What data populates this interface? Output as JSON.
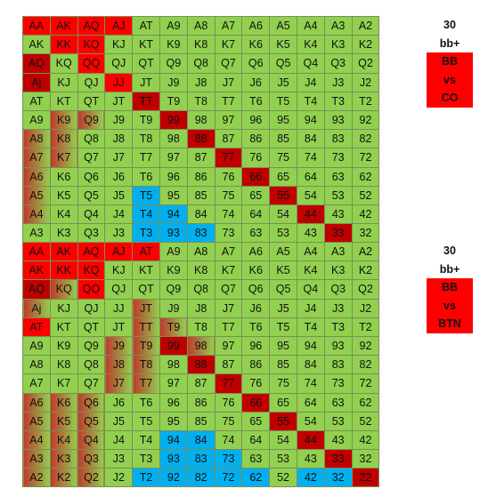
{
  "colors": {
    "green": "#92d050",
    "red": "#ff0000",
    "darkred": "#c00000",
    "blue": "#00b0f0",
    "gradred": "#c0392b"
  },
  "charts": [
    {
      "info": [
        "30",
        "bb+",
        "BB",
        "vs",
        "CO"
      ],
      "info_style": [
        "plain",
        "plain",
        "red",
        "red",
        "red"
      ],
      "rows": [
        [
          "AA",
          "AK",
          "AQ",
          "AJ",
          "AT",
          "A9",
          "A8",
          "A7",
          "A6",
          "A5",
          "A4",
          "A3",
          "A2"
        ],
        [
          "AK",
          "KK",
          "KQ",
          "KJ",
          "KT",
          "K9",
          "K8",
          "K7",
          "K6",
          "K5",
          "K4",
          "K3",
          "K2"
        ],
        [
          "AQ",
          "KQ",
          "QQ",
          "QJ",
          "QT",
          "Q9",
          "Q8",
          "Q7",
          "Q6",
          "Q5",
          "Q4",
          "Q3",
          "Q2"
        ],
        [
          "Aj",
          "KJ",
          "QJ",
          "JJ",
          "JT",
          "J9",
          "J8",
          "J7",
          "J6",
          "J5",
          "J4",
          "J3",
          "J2"
        ],
        [
          "AT",
          "KT",
          "QT",
          "JT",
          "TT",
          "T9",
          "T8",
          "T7",
          "T6",
          "T5",
          "T4",
          "T3",
          "T2"
        ],
        [
          "A9",
          "K9",
          "Q9",
          "J9",
          "T9",
          "99",
          "98",
          "97",
          "96",
          "95",
          "94",
          "93",
          "92"
        ],
        [
          "A8",
          "K8",
          "Q8",
          "J8",
          "T8",
          "98",
          "88",
          "87",
          "86",
          "85",
          "84",
          "83",
          "82"
        ],
        [
          "A7",
          "K7",
          "Q7",
          "J7",
          "T7",
          "97",
          "87",
          "77",
          "76",
          "75",
          "74",
          "73",
          "72"
        ],
        [
          "A6",
          "K6",
          "Q6",
          "J6",
          "T6",
          "96",
          "86",
          "76",
          "66",
          "65",
          "64",
          "63",
          "62"
        ],
        [
          "A5",
          "K5",
          "Q5",
          "J5",
          "T5",
          "95",
          "85",
          "75",
          "65",
          "55",
          "54",
          "53",
          "52"
        ],
        [
          "A4",
          "K4",
          "Q4",
          "J4",
          "T4",
          "94",
          "84",
          "74",
          "64",
          "54",
          "44",
          "43",
          "42"
        ],
        [
          "A3",
          "K3",
          "Q3",
          "J3",
          "T3",
          "93",
          "83",
          "73",
          "63",
          "53",
          "43",
          "33",
          "32"
        ],
        [
          "A2",
          "K2",
          "Q2",
          "J2",
          "T2",
          "92",
          "82",
          "72",
          "62",
          "52",
          "42",
          "32",
          "22"
        ]
      ],
      "colorcodes": [
        [
          "R",
          "R",
          "R",
          "R",
          "G",
          "G",
          "G",
          "G",
          "G",
          "G",
          "G",
          "G",
          "G"
        ],
        [
          "G",
          "R",
          "R",
          "G",
          "G",
          "G",
          "G",
          "G",
          "G",
          "G",
          "G",
          "G",
          "G"
        ],
        [
          "D",
          "G",
          "R",
          "G",
          "G",
          "G",
          "G",
          "G",
          "G",
          "G",
          "G",
          "G",
          "G"
        ],
        [
          "D",
          "G",
          "G",
          "R",
          "G",
          "G",
          "G",
          "G",
          "G",
          "G",
          "G",
          "G",
          "G"
        ],
        [
          "G",
          "G",
          "G",
          "G",
          "D",
          "G",
          "G",
          "G",
          "G",
          "G",
          "G",
          "G",
          "G"
        ],
        [
          "G",
          "M",
          "M",
          "G",
          "G",
          "D",
          "G",
          "G",
          "G",
          "G",
          "G",
          "G",
          "G"
        ],
        [
          "M",
          "M",
          "G",
          "G",
          "G",
          "G",
          "D",
          "G",
          "G",
          "G",
          "G",
          "G",
          "G"
        ],
        [
          "M",
          "M",
          "G",
          "G",
          "G",
          "G",
          "G",
          "D",
          "G",
          "G",
          "G",
          "G",
          "G"
        ],
        [
          "M",
          "G",
          "G",
          "G",
          "G",
          "G",
          "G",
          "G",
          "D",
          "G",
          "G",
          "G",
          "G"
        ],
        [
          "M",
          "G",
          "G",
          "G",
          "B",
          "G",
          "G",
          "G",
          "G",
          "D",
          "G",
          "G",
          "G"
        ],
        [
          "M",
          "G",
          "G",
          "G",
          "B",
          "B",
          "G",
          "G",
          "G",
          "G",
          "D",
          "G",
          "G"
        ],
        [
          "G",
          "G",
          "G",
          "G",
          "B",
          "B",
          "B",
          "G",
          "G",
          "G",
          "G",
          "D",
          "G"
        ],
        [
          "G",
          "G",
          "G",
          "B",
          "B",
          "B",
          "B",
          "B",
          "B",
          "G",
          "B",
          "B",
          "D"
        ]
      ]
    },
    {
      "info": [
        "30",
        "bb+",
        "BB",
        "vs",
        "BTN"
      ],
      "info_style": [
        "plain",
        "plain",
        "red",
        "red",
        "red"
      ],
      "rows": [
        [
          "AA",
          "AK",
          "AQ",
          "AJ",
          "AT",
          "A9",
          "A8",
          "A7",
          "A6",
          "A5",
          "A4",
          "A3",
          "A2"
        ],
        [
          "AK",
          "KK",
          "KQ",
          "KJ",
          "KT",
          "K9",
          "K8",
          "K7",
          "K6",
          "K5",
          "K4",
          "K3",
          "K2"
        ],
        [
          "AQ",
          "KQ",
          "QQ",
          "QJ",
          "QT",
          "Q9",
          "Q8",
          "Q7",
          "Q6",
          "Q5",
          "Q4",
          "Q3",
          "Q2"
        ],
        [
          "Aj",
          "KJ",
          "QJ",
          "JJ",
          "JT",
          "J9",
          "J8",
          "J7",
          "J6",
          "J5",
          "J4",
          "J3",
          "J2"
        ],
        [
          "AT",
          "KT",
          "QT",
          "JT",
          "TT",
          "T9",
          "T8",
          "T7",
          "T6",
          "T5",
          "T4",
          "T3",
          "T2"
        ],
        [
          "A9",
          "K9",
          "Q9",
          "J9",
          "T9",
          "99",
          "98",
          "97",
          "96",
          "95",
          "94",
          "93",
          "92"
        ],
        [
          "A8",
          "K8",
          "Q8",
          "J8",
          "T8",
          "98",
          "88",
          "87",
          "86",
          "85",
          "84",
          "83",
          "82"
        ],
        [
          "A7",
          "K7",
          "Q7",
          "J7",
          "T7",
          "97",
          "87",
          "77",
          "76",
          "75",
          "74",
          "73",
          "72"
        ],
        [
          "A6",
          "K6",
          "Q6",
          "J6",
          "T6",
          "96",
          "86",
          "76",
          "66",
          "65",
          "64",
          "63",
          "62"
        ],
        [
          "A5",
          "K5",
          "Q5",
          "J5",
          "T5",
          "95",
          "85",
          "75",
          "65",
          "55",
          "54",
          "53",
          "52"
        ],
        [
          "A4",
          "K4",
          "Q4",
          "J4",
          "T4",
          "94",
          "84",
          "74",
          "64",
          "54",
          "44",
          "43",
          "42"
        ],
        [
          "A3",
          "K3",
          "Q3",
          "J3",
          "T3",
          "93",
          "83",
          "73",
          "63",
          "53",
          "43",
          "33",
          "32"
        ],
        [
          "A2",
          "K2",
          "Q2",
          "J2",
          "T2",
          "92",
          "82",
          "72",
          "62",
          "52",
          "42",
          "32",
          "22"
        ]
      ],
      "colorcodes": [
        [
          "R",
          "R",
          "R",
          "R",
          "R",
          "G",
          "G",
          "G",
          "G",
          "G",
          "G",
          "G",
          "G"
        ],
        [
          "R",
          "R",
          "R",
          "G",
          "G",
          "G",
          "G",
          "G",
          "G",
          "G",
          "G",
          "G",
          "G"
        ],
        [
          "D",
          "M",
          "R",
          "G",
          "G",
          "G",
          "G",
          "G",
          "G",
          "G",
          "G",
          "G",
          "G"
        ],
        [
          "M",
          "G",
          "G",
          "G",
          "M",
          "G",
          "G",
          "G",
          "G",
          "G",
          "G",
          "G",
          "G"
        ],
        [
          "R",
          "G",
          "G",
          "G",
          "M",
          "M",
          "G",
          "G",
          "G",
          "G",
          "G",
          "G",
          "G"
        ],
        [
          "G",
          "G",
          "G",
          "M",
          "M",
          "D",
          "M",
          "G",
          "G",
          "G",
          "G",
          "G",
          "G"
        ],
        [
          "G",
          "G",
          "G",
          "M",
          "M",
          "G",
          "D",
          "G",
          "G",
          "G",
          "G",
          "G",
          "G"
        ],
        [
          "G",
          "G",
          "G",
          "M",
          "M",
          "G",
          "G",
          "D",
          "G",
          "G",
          "G",
          "G",
          "G"
        ],
        [
          "M",
          "M",
          "M",
          "G",
          "G",
          "G",
          "G",
          "G",
          "D",
          "G",
          "G",
          "G",
          "G"
        ],
        [
          "M",
          "M",
          "M",
          "G",
          "G",
          "G",
          "G",
          "G",
          "G",
          "D",
          "G",
          "G",
          "G"
        ],
        [
          "M",
          "M",
          "M",
          "G",
          "G",
          "B",
          "B",
          "G",
          "G",
          "G",
          "D",
          "G",
          "G"
        ],
        [
          "M",
          "M",
          "M",
          "G",
          "G",
          "B",
          "B",
          "B",
          "G",
          "G",
          "G",
          "D",
          "G"
        ],
        [
          "M",
          "M",
          "M",
          "G",
          "B",
          "B",
          "B",
          "B",
          "B",
          "G",
          "B",
          "B",
          "D"
        ]
      ]
    }
  ]
}
